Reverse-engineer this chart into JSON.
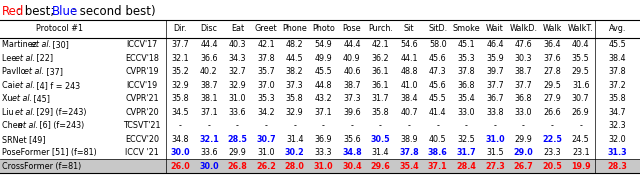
{
  "columns_header": [
    "Dir.",
    "Disc",
    "Eat",
    "Greet",
    "Phone",
    "Photo",
    "Pose",
    "Purch.",
    "Sit",
    "SitD.",
    "Smoke",
    "Wait",
    "WalkD.",
    "Walk",
    "WalkT.",
    "Avg."
  ],
  "rows": [
    {
      "name": "Martinez ",
      "name_et": "et al.",
      "name_rest": " [30]",
      "venue": "ICCV'17",
      "values": [
        "37.7",
        "44.4",
        "40.3",
        "42.1",
        "48.2",
        "54.9",
        "44.4",
        "42.1",
        "54.6",
        "58.0",
        "45.1",
        "46.4",
        "47.6",
        "36.4",
        "40.4",
        "45.5"
      ],
      "colors": [
        "k",
        "k",
        "k",
        "k",
        "k",
        "k",
        "k",
        "k",
        "k",
        "k",
        "k",
        "k",
        "k",
        "k",
        "k",
        "k"
      ]
    },
    {
      "name": "Lee ",
      "name_et": "et al.",
      "name_rest": " [22]",
      "venue": "ECCV'18",
      "values": [
        "32.1",
        "36.6",
        "34.3",
        "37.8",
        "44.5",
        "49.9",
        "40.9",
        "36.2",
        "44.1",
        "45.6",
        "35.3",
        "35.9",
        "30.3",
        "37.6",
        "35.5",
        "38.4"
      ],
      "colors": [
        "k",
        "k",
        "k",
        "k",
        "k",
        "k",
        "k",
        "k",
        "k",
        "k",
        "k",
        "k",
        "k",
        "k",
        "k",
        "k"
      ]
    },
    {
      "name": "Pavllo ",
      "name_et": "et al.",
      "name_rest": " [37]",
      "venue": "CVPR'19",
      "values": [
        "35.2",
        "40.2",
        "32.7",
        "35.7",
        "38.2",
        "45.5",
        "40.6",
        "36.1",
        "48.8",
        "47.3",
        "37.8",
        "39.7",
        "38.7",
        "27.8",
        "29.5",
        "37.8"
      ],
      "colors": [
        "k",
        "k",
        "k",
        "k",
        "k",
        "k",
        "k",
        "k",
        "k",
        "k",
        "k",
        "k",
        "k",
        "k",
        "k",
        "k"
      ]
    },
    {
      "name": "Cai ",
      "name_et": "et al.",
      "name_rest": " [4] f = 243",
      "venue": "ICCV'19",
      "values": [
        "32.9",
        "38.7",
        "32.9",
        "37.0",
        "37.3",
        "44.8",
        "38.7",
        "36.1",
        "41.0",
        "45.6",
        "36.8",
        "37.7",
        "37.7",
        "29.5",
        "31.6",
        "37.2"
      ],
      "colors": [
        "k",
        "k",
        "k",
        "k",
        "k",
        "k",
        "k",
        "k",
        "k",
        "k",
        "k",
        "k",
        "k",
        "k",
        "k",
        "k"
      ]
    },
    {
      "name": "Xu ",
      "name_et": "et al.",
      "name_rest": " [45]",
      "venue": "CVPR'21",
      "values": [
        "35.8",
        "38.1",
        "31.0",
        "35.3",
        "35.8",
        "43.2",
        "37.3",
        "31.7",
        "38.4",
        "45.5",
        "35.4",
        "36.7",
        "36.8",
        "27.9",
        "30.7",
        "35.8"
      ],
      "colors": [
        "k",
        "k",
        "k",
        "k",
        "k",
        "k",
        "k",
        "k",
        "k",
        "k",
        "k",
        "k",
        "k",
        "k",
        "k",
        "k"
      ]
    },
    {
      "name": "Liu ",
      "name_et": "et al.",
      "name_rest": " [29] (f=243)",
      "venue": "CVPR'20",
      "values": [
        "34.5",
        "37.1",
        "33.6",
        "34.2",
        "32.9",
        "37.1",
        "39.6",
        "35.8",
        "40.7",
        "41.4",
        "33.0",
        "33.8",
        "33.0",
        "26.6",
        "26.9",
        "34.7"
      ],
      "colors": [
        "k",
        "k",
        "k",
        "k",
        "k",
        "k",
        "k",
        "k",
        "k",
        "k",
        "k",
        "k",
        "k",
        "k",
        "k",
        "k"
      ]
    },
    {
      "name": "Chen ",
      "name_et": "et al.",
      "name_rest": " [6] (f=243)",
      "venue": "TCSVT'21",
      "values": [
        "-",
        "-",
        "-",
        "-",
        "-",
        "-",
        "-",
        "-",
        "-",
        "-",
        "-",
        "-",
        "-",
        "-",
        "-",
        "32.3"
      ],
      "colors": [
        "k",
        "k",
        "k",
        "k",
        "k",
        "k",
        "k",
        "k",
        "k",
        "k",
        "k",
        "k",
        "k",
        "k",
        "k",
        "k"
      ]
    },
    {
      "name": "SRNet [49]",
      "name_et": "",
      "name_rest": "",
      "venue": "ECCV'20",
      "values": [
        "34.8",
        "32.1",
        "28.5",
        "30.7",
        "31.4",
        "36.9",
        "35.6",
        "30.5",
        "38.9",
        "40.5",
        "32.5",
        "31.0",
        "29.9",
        "22.5",
        "24.5",
        "32.0"
      ],
      "colors": [
        "k",
        "b",
        "b",
        "b",
        "k",
        "k",
        "k",
        "b",
        "k",
        "k",
        "k",
        "b",
        "k",
        "b",
        "k",
        "k"
      ]
    },
    {
      "name": "PoseFormer [51] (f=81)",
      "name_et": "",
      "name_rest": "",
      "venue": "ICCV '21",
      "values": [
        "30.0",
        "33.6",
        "29.9",
        "31.0",
        "30.2",
        "33.3",
        "34.8",
        "31.4",
        "37.8",
        "38.6",
        "31.7",
        "31.5",
        "29.0",
        "23.3",
        "23.1",
        "31.3"
      ],
      "colors": [
        "b",
        "k",
        "k",
        "k",
        "b",
        "k",
        "b",
        "k",
        "b",
        "b",
        "b",
        "k",
        "b",
        "k",
        "k",
        "b"
      ]
    },
    {
      "name": "CrossFormer (f=81)",
      "name_et": "",
      "name_rest": "",
      "venue": "",
      "values": [
        "26.0",
        "30.0",
        "26.8",
        "26.2",
        "28.0",
        "31.0",
        "30.4",
        "29.6",
        "35.4",
        "37.1",
        "28.4",
        "27.3",
        "26.7",
        "20.5",
        "19.9",
        "28.3"
      ],
      "colors": [
        "r",
        "b",
        "r",
        "r",
        "r",
        "r",
        "r",
        "r",
        "r",
        "r",
        "r",
        "r",
        "r",
        "r",
        "r",
        "r"
      ]
    }
  ],
  "last_row_bg": "#c8c8c8",
  "font_size": 5.8,
  "title_fontsize": 8.5
}
